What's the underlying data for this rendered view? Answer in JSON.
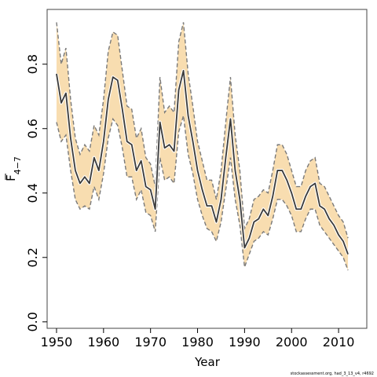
{
  "chart_data": {
    "type": "line",
    "title": "",
    "xlabel": "Year",
    "ylabel_base": "F",
    "ylabel_sub": "4−7",
    "xlim": [
      1948,
      2016
    ],
    "ylim": [
      -0.02,
      0.97
    ],
    "x_ticks": [
      1950,
      1960,
      1970,
      1980,
      1990,
      2000,
      2010
    ],
    "y_ticks": [
      0.0,
      0.2,
      0.4,
      0.6,
      0.8
    ],
    "y_tick_labels": [
      "0.0",
      "0.2",
      "0.4",
      "0.6",
      "0.8"
    ],
    "grid": false,
    "legend": "none",
    "colors": {
      "band": "#F8DDB0",
      "band_edge": "#7a7a7a",
      "line": "#3a3a3a",
      "frame": "#444444"
    },
    "x": [
      1950,
      1951,
      1952,
      1953,
      1954,
      1955,
      1956,
      1957,
      1958,
      1959,
      1960,
      1961,
      1962,
      1963,
      1964,
      1965,
      1966,
      1967,
      1968,
      1969,
      1970,
      1971,
      1972,
      1973,
      1974,
      1975,
      1976,
      1977,
      1978,
      1979,
      1980,
      1981,
      1982,
      1983,
      1984,
      1985,
      1986,
      1987,
      1988,
      1989,
      1990,
      1991,
      1992,
      1993,
      1994,
      1995,
      1996,
      1997,
      1998,
      1999,
      2000,
      2001,
      2002,
      2003,
      2004,
      2005,
      2006,
      2007,
      2008,
      2009,
      2010,
      2011,
      2012
    ],
    "series": [
      {
        "name": "estimate",
        "values": [
          0.77,
          0.68,
          0.71,
          0.57,
          0.47,
          0.43,
          0.45,
          0.43,
          0.51,
          0.47,
          0.56,
          0.69,
          0.76,
          0.75,
          0.66,
          0.56,
          0.55,
          0.47,
          0.5,
          0.42,
          0.41,
          0.35,
          0.62,
          0.54,
          0.55,
          0.53,
          0.72,
          0.78,
          0.64,
          0.56,
          0.47,
          0.41,
          0.36,
          0.36,
          0.31,
          0.38,
          0.51,
          0.63,
          0.47,
          0.38,
          0.23,
          0.26,
          0.31,
          0.32,
          0.35,
          0.33,
          0.39,
          0.47,
          0.47,
          0.44,
          0.4,
          0.35,
          0.35,
          0.39,
          0.42,
          0.43,
          0.36,
          0.35,
          0.32,
          0.3,
          0.27,
          0.25,
          0.21
        ]
      },
      {
        "name": "upper",
        "values": [
          0.93,
          0.8,
          0.85,
          0.69,
          0.57,
          0.52,
          0.55,
          0.53,
          0.61,
          0.58,
          0.69,
          0.84,
          0.9,
          0.89,
          0.78,
          0.67,
          0.66,
          0.57,
          0.6,
          0.51,
          0.49,
          0.42,
          0.76,
          0.65,
          0.67,
          0.65,
          0.87,
          0.93,
          0.77,
          0.67,
          0.56,
          0.5,
          0.44,
          0.44,
          0.38,
          0.47,
          0.62,
          0.76,
          0.58,
          0.47,
          0.29,
          0.32,
          0.38,
          0.39,
          0.41,
          0.4,
          0.47,
          0.55,
          0.55,
          0.52,
          0.47,
          0.42,
          0.42,
          0.47,
          0.5,
          0.51,
          0.43,
          0.42,
          0.39,
          0.36,
          0.33,
          0.31,
          0.26
        ]
      },
      {
        "name": "lower",
        "values": [
          0.62,
          0.56,
          0.58,
          0.47,
          0.38,
          0.35,
          0.36,
          0.35,
          0.42,
          0.38,
          0.46,
          0.57,
          0.63,
          0.61,
          0.54,
          0.45,
          0.45,
          0.38,
          0.41,
          0.34,
          0.33,
          0.28,
          0.51,
          0.44,
          0.45,
          0.43,
          0.59,
          0.64,
          0.52,
          0.46,
          0.38,
          0.33,
          0.29,
          0.28,
          0.25,
          0.31,
          0.41,
          0.51,
          0.38,
          0.3,
          0.17,
          0.21,
          0.25,
          0.26,
          0.28,
          0.27,
          0.32,
          0.38,
          0.38,
          0.36,
          0.33,
          0.28,
          0.28,
          0.32,
          0.35,
          0.35,
          0.3,
          0.28,
          0.26,
          0.24,
          0.22,
          0.2,
          0.16
        ]
      }
    ],
    "footnote": "stockassessment.org, had_3_13_v4, r4692"
  }
}
